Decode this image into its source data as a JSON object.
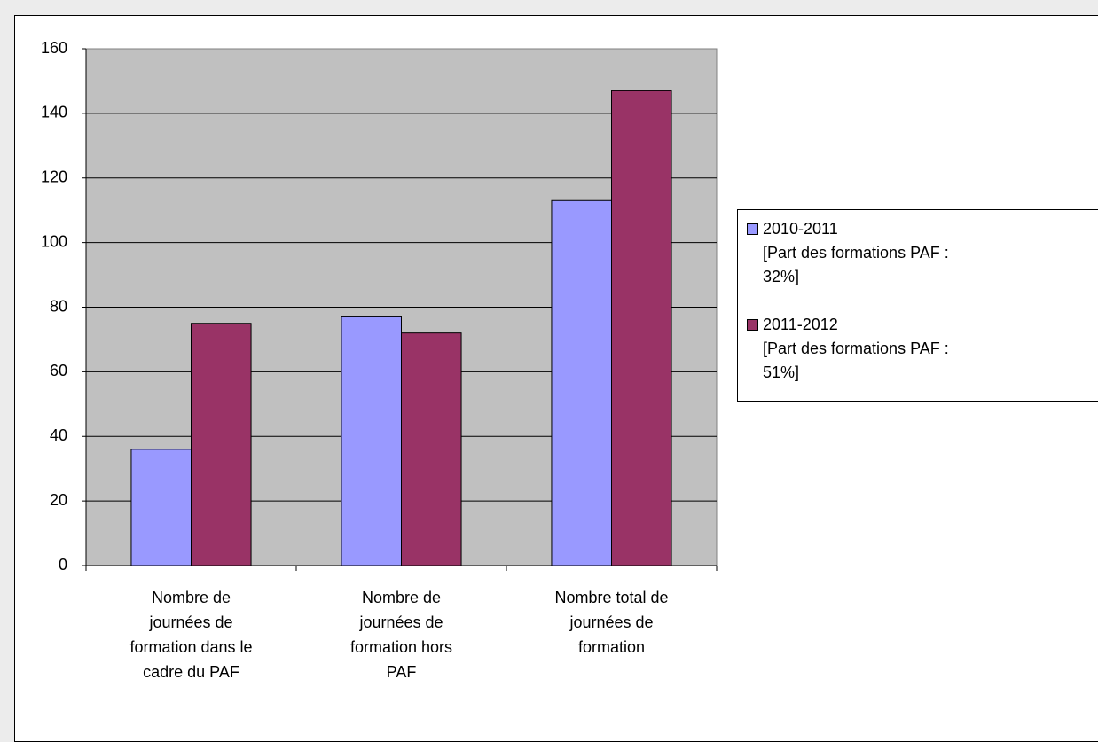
{
  "chart_data": {
    "type": "bar",
    "categories": [
      "Nombre de\njournées de\nformation dans le\ncadre du PAF",
      "Nombre de\njournées de\nformation hors\nPAF",
      "Nombre total de\njournées de\nformation"
    ],
    "series": [
      {
        "name": "2010-2011\n[Part des formations PAF :\n32%]",
        "color": "#9999ff",
        "values": [
          36,
          77,
          113
        ]
      },
      {
        "name": "2011-2012\n[Part des formations PAF :\n51%]",
        "color": "#993366",
        "values": [
          75,
          72,
          147
        ]
      }
    ],
    "ylim": [
      0,
      160
    ],
    "yticks": [
      0,
      20,
      40,
      60,
      80,
      100,
      120,
      140,
      160
    ],
    "grid": true,
    "legend": "right"
  }
}
